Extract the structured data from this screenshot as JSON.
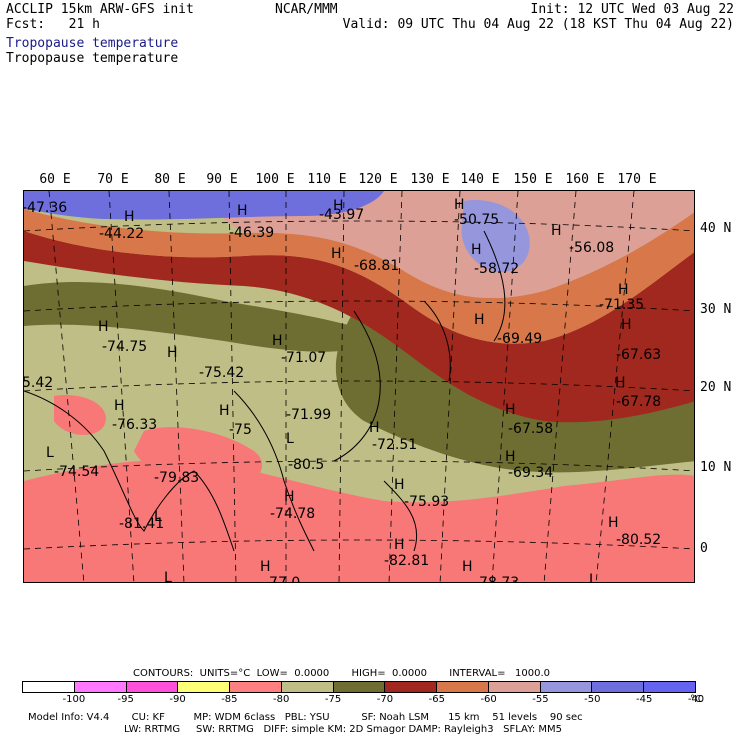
{
  "header": {
    "left_line1": "ACCLIP 15km ARW-GFS init",
    "left_line2": "Fcst:   21 h",
    "center": "NCAR/MMM",
    "right_line1": "Init: 12 UTC Wed 03 Aug 22",
    "right_line2": "Valid: 09 UTC Thu 04 Aug 22 (18 KST Thu 04 Aug 22)"
  },
  "field_title_1": "Tropopause temperature",
  "field_title_2": "Tropopause temperature",
  "map": {
    "longitude_labels": [
      "60 E",
      "70 E",
      "80 E",
      "90 E",
      "100 E",
      "110 E",
      "120 E",
      "130 E",
      "140 E",
      "150 E",
      "160 E",
      "170 E"
    ],
    "latitude_labels": [
      "40 N",
      "30 N",
      "20 N",
      "10 N",
      "0"
    ],
    "value_labels": [
      "-47.36",
      "-44.22",
      "-46.39",
      "-43.97",
      "-50.75",
      "-58.72",
      "-56.08",
      "-68.81",
      "-71.35",
      "-69.49",
      "-67.63",
      "-74.75",
      "-71.07",
      "-75.42",
      "-67.78",
      "-71.99",
      "-76.33",
      "-75",
      "-67.58",
      "-72.51",
      "-80.5",
      "-69.34",
      "-74.54",
      "-79.83",
      "-75.93",
      "-74.78",
      "-81.41",
      "-80.52",
      "-82.81",
      "-78.73",
      "-77.0",
      "5.42"
    ],
    "high_low_markers": [
      "H",
      "H",
      "H",
      "H",
      "H",
      "H",
      "H",
      "H",
      "H",
      "H",
      "H",
      "H",
      "H",
      "H",
      "H",
      "H",
      "H",
      "H",
      "H",
      "H",
      "H",
      "H",
      "H",
      "H",
      "H",
      "L",
      "L",
      "L",
      "L",
      "L"
    ]
  },
  "colors": {
    "lt_-80": "#f87878",
    "-80_-75": "#bebe86",
    "-75_-70": "#6e6e32",
    "-70_-65": "#a0281e",
    "-65_-60": "#d8784a",
    "-60_-55": "#dca096",
    "-55_-50": "#9696dc",
    "-50_-45": "#6e6edc",
    "ocean_low": "#f87878"
  },
  "contours_line": "CONTOURS:  UNITS=°C  LOW=  0.0000       HIGH=  0.0000       INTERVAL=   1000.0",
  "legend": {
    "colors": [
      "#ffffff",
      "#ff78ff",
      "#ff50dc",
      "#ffff78",
      "#ff8080",
      "#bebe86",
      "#6e6e32",
      "#a0281e",
      "#d8784a",
      "#dca096",
      "#9696dc",
      "#6e6edc",
      "#6464f0"
    ],
    "ticks": [
      "-100",
      "-95",
      "-90",
      "-85",
      "-80",
      "-75",
      "-70",
      "-65",
      "-60",
      "-55",
      "-50",
      "-45",
      "-40"
    ],
    "unit": "°C"
  },
  "model_info": {
    "line1": "Model Info: V4.4       CU: KF         MP: WDM 6class   PBL: YSU          SF: Noah LSM      15 km    51 levels    90 sec",
    "line2": "LW: RRTMG     SW: RRTMG   DIFF: simple KM: 2D Smagor DAMP: Rayleigh3   SFLAY: MM5"
  }
}
